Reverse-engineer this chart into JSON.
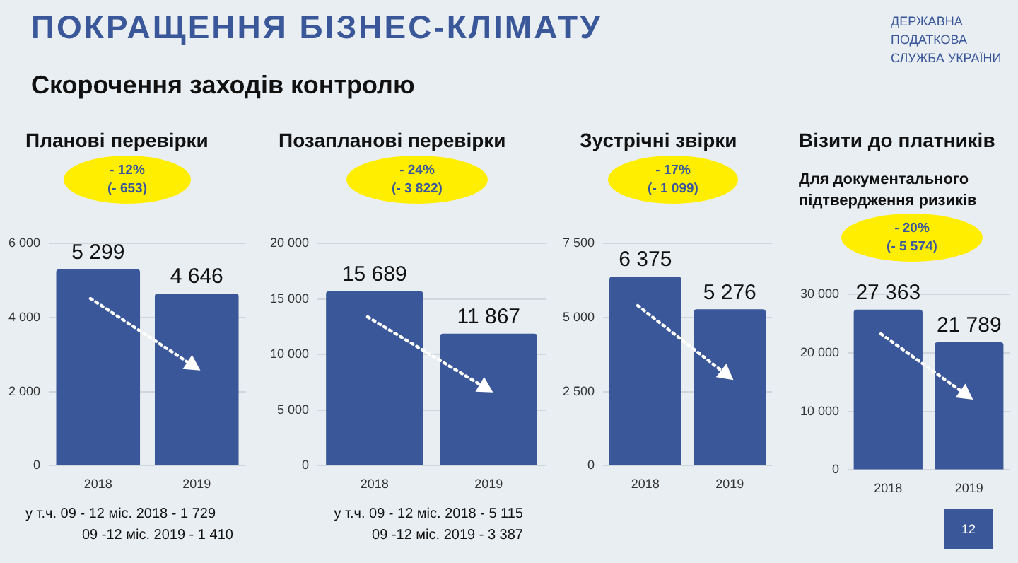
{
  "chart_data": [
    {
      "type": "bar",
      "title": "Планові перевірки",
      "categories": [
        "2018",
        "2019"
      ],
      "values": [
        5299,
        4646
      ],
      "value_labels": [
        "5 299",
        "4 646"
      ],
      "color": "#3a5799",
      "ylim": [
        0,
        6000
      ],
      "yticks": [
        {
          "value": 0,
          "label": "0"
        },
        {
          "value": 2000,
          "label": "2 000"
        },
        {
          "value": 4000,
          "label": "4 000"
        },
        {
          "value": 6000,
          "label": "6 000"
        }
      ],
      "grid": "y",
      "legend": false,
      "annotations": [
        "- 12%",
        "(- 653)",
        "у т.ч. 09 - 12 міс. 2018 - 1 729",
        "09 -12 міс. 2019 - 1 410",
        "ПОКРАЩЕННЯ БІЗНЕС-КЛІМАТУ",
        "Скорочення заходів контролю",
        "ДЕРЖАВНА ПОДАТКОВА СЛУЖБА УКРАЇНИ",
        "12"
      ]
    },
    {
      "type": "bar",
      "title": "Позапланові перевірки",
      "categories": [
        "2018",
        "2019"
      ],
      "values": [
        15689,
        11867
      ],
      "value_labels": [
        "15 689",
        "11 867"
      ],
      "color": "#3a5799",
      "ylim": [
        0,
        20000
      ],
      "yticks": [
        {
          "value": 0,
          "label": "0"
        },
        {
          "value": 5000,
          "label": "5 000"
        },
        {
          "value": 10000,
          "label": "10 000"
        },
        {
          "value": 15000,
          "label": "15 000"
        },
        {
          "value": 20000,
          "label": "20 000"
        }
      ],
      "grid": "y",
      "legend": false,
      "annotations": [
        "- 24%",
        "(- 3 822)",
        "у т.ч. 09 - 12 міс. 2018 - 5 115",
        "09 -12 міс. 2019 - 3 387"
      ]
    },
    {
      "type": "bar",
      "title": "Зустрічні звірки",
      "categories": [
        "2018",
        "2019"
      ],
      "values": [
        6375,
        5276
      ],
      "value_labels": [
        "6 375",
        "5 276"
      ],
      "color": "#3a5799",
      "ylim": [
        0,
        7500
      ],
      "yticks": [
        {
          "value": 0,
          "label": "0"
        },
        {
          "value": 2500,
          "label": "2 500"
        },
        {
          "value": 5000,
          "label": "5 000"
        },
        {
          "value": 7500,
          "label": "7 500"
        }
      ],
      "grid": "y",
      "legend": false,
      "annotations": [
        "- 17%",
        "(- 1 099)"
      ]
    },
    {
      "type": "bar",
      "title": "Візити до платників",
      "subtitle": "Для документального підтвердження ризиків",
      "categories": [
        "2018",
        "2019"
      ],
      "values": [
        27363,
        21789
      ],
      "value_labels": [
        "27 363",
        "21 789"
      ],
      "color": "#3a5799",
      "ylim": [
        0,
        30000
      ],
      "yticks": [
        {
          "value": 0,
          "label": "0"
        },
        {
          "value": 10000,
          "label": "10 000"
        },
        {
          "value": 20000,
          "label": "20 000"
        },
        {
          "value": 30000,
          "label": "30 000"
        }
      ],
      "grid": "y",
      "legend": false,
      "annotations": [
        "- 20%",
        "(- 5 574)"
      ]
    }
  ]
}
